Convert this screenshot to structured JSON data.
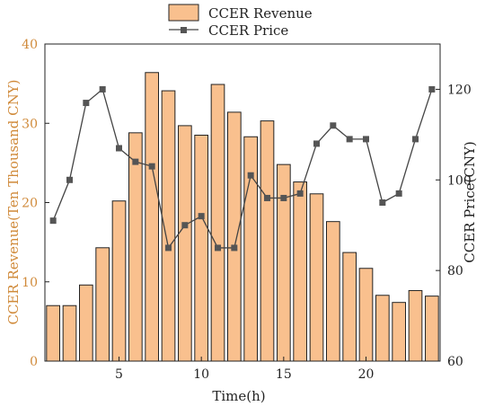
{
  "chart_data": {
    "type": "bar",
    "x_label": "Time(h)",
    "y_left_label": "CCER Revenue(Ten Thousand CNY)",
    "y_right_label": "CCER Price(CNY)",
    "x_range": [
      0.5,
      24.5
    ],
    "x_ticks": [
      5,
      10,
      15,
      20
    ],
    "y_left_range": [
      0,
      40
    ],
    "y_left_ticks": [
      0,
      10,
      20,
      30,
      40
    ],
    "y_right_range": [
      60,
      130
    ],
    "y_right_ticks": [
      60,
      80,
      100,
      120
    ],
    "grid": false,
    "legend_position": "top-center",
    "colors": {
      "bar_fill": "#F9C08E",
      "bar_stroke": "#222222",
      "line": "#444444",
      "marker": "#555555",
      "left_axis_text": "#D08A3A",
      "right_axis_text": "#222222"
    },
    "x": [
      1,
      2,
      3,
      4,
      5,
      6,
      7,
      8,
      9,
      10,
      11,
      12,
      13,
      14,
      15,
      16,
      17,
      18,
      19,
      20,
      21,
      22,
      23,
      24
    ],
    "series": [
      {
        "name": "CCER Revenue",
        "type": "bar",
        "axis": "left",
        "values": [
          7.0,
          7.0,
          9.6,
          14.3,
          20.2,
          28.8,
          36.4,
          34.1,
          29.7,
          28.5,
          34.9,
          31.4,
          28.3,
          30.3,
          24.8,
          22.6,
          21.1,
          17.6,
          13.7,
          11.7,
          8.3,
          7.4,
          8.9,
          8.2
        ]
      },
      {
        "name": "CCER Price",
        "type": "line",
        "axis": "right",
        "marker": "square",
        "values": [
          91,
          100,
          117,
          120,
          107,
          104,
          103,
          85,
          90,
          92,
          85,
          85,
          101,
          96,
          96,
          97,
          108,
          112,
          109,
          109,
          95,
          97,
          109,
          120
        ]
      }
    ]
  }
}
